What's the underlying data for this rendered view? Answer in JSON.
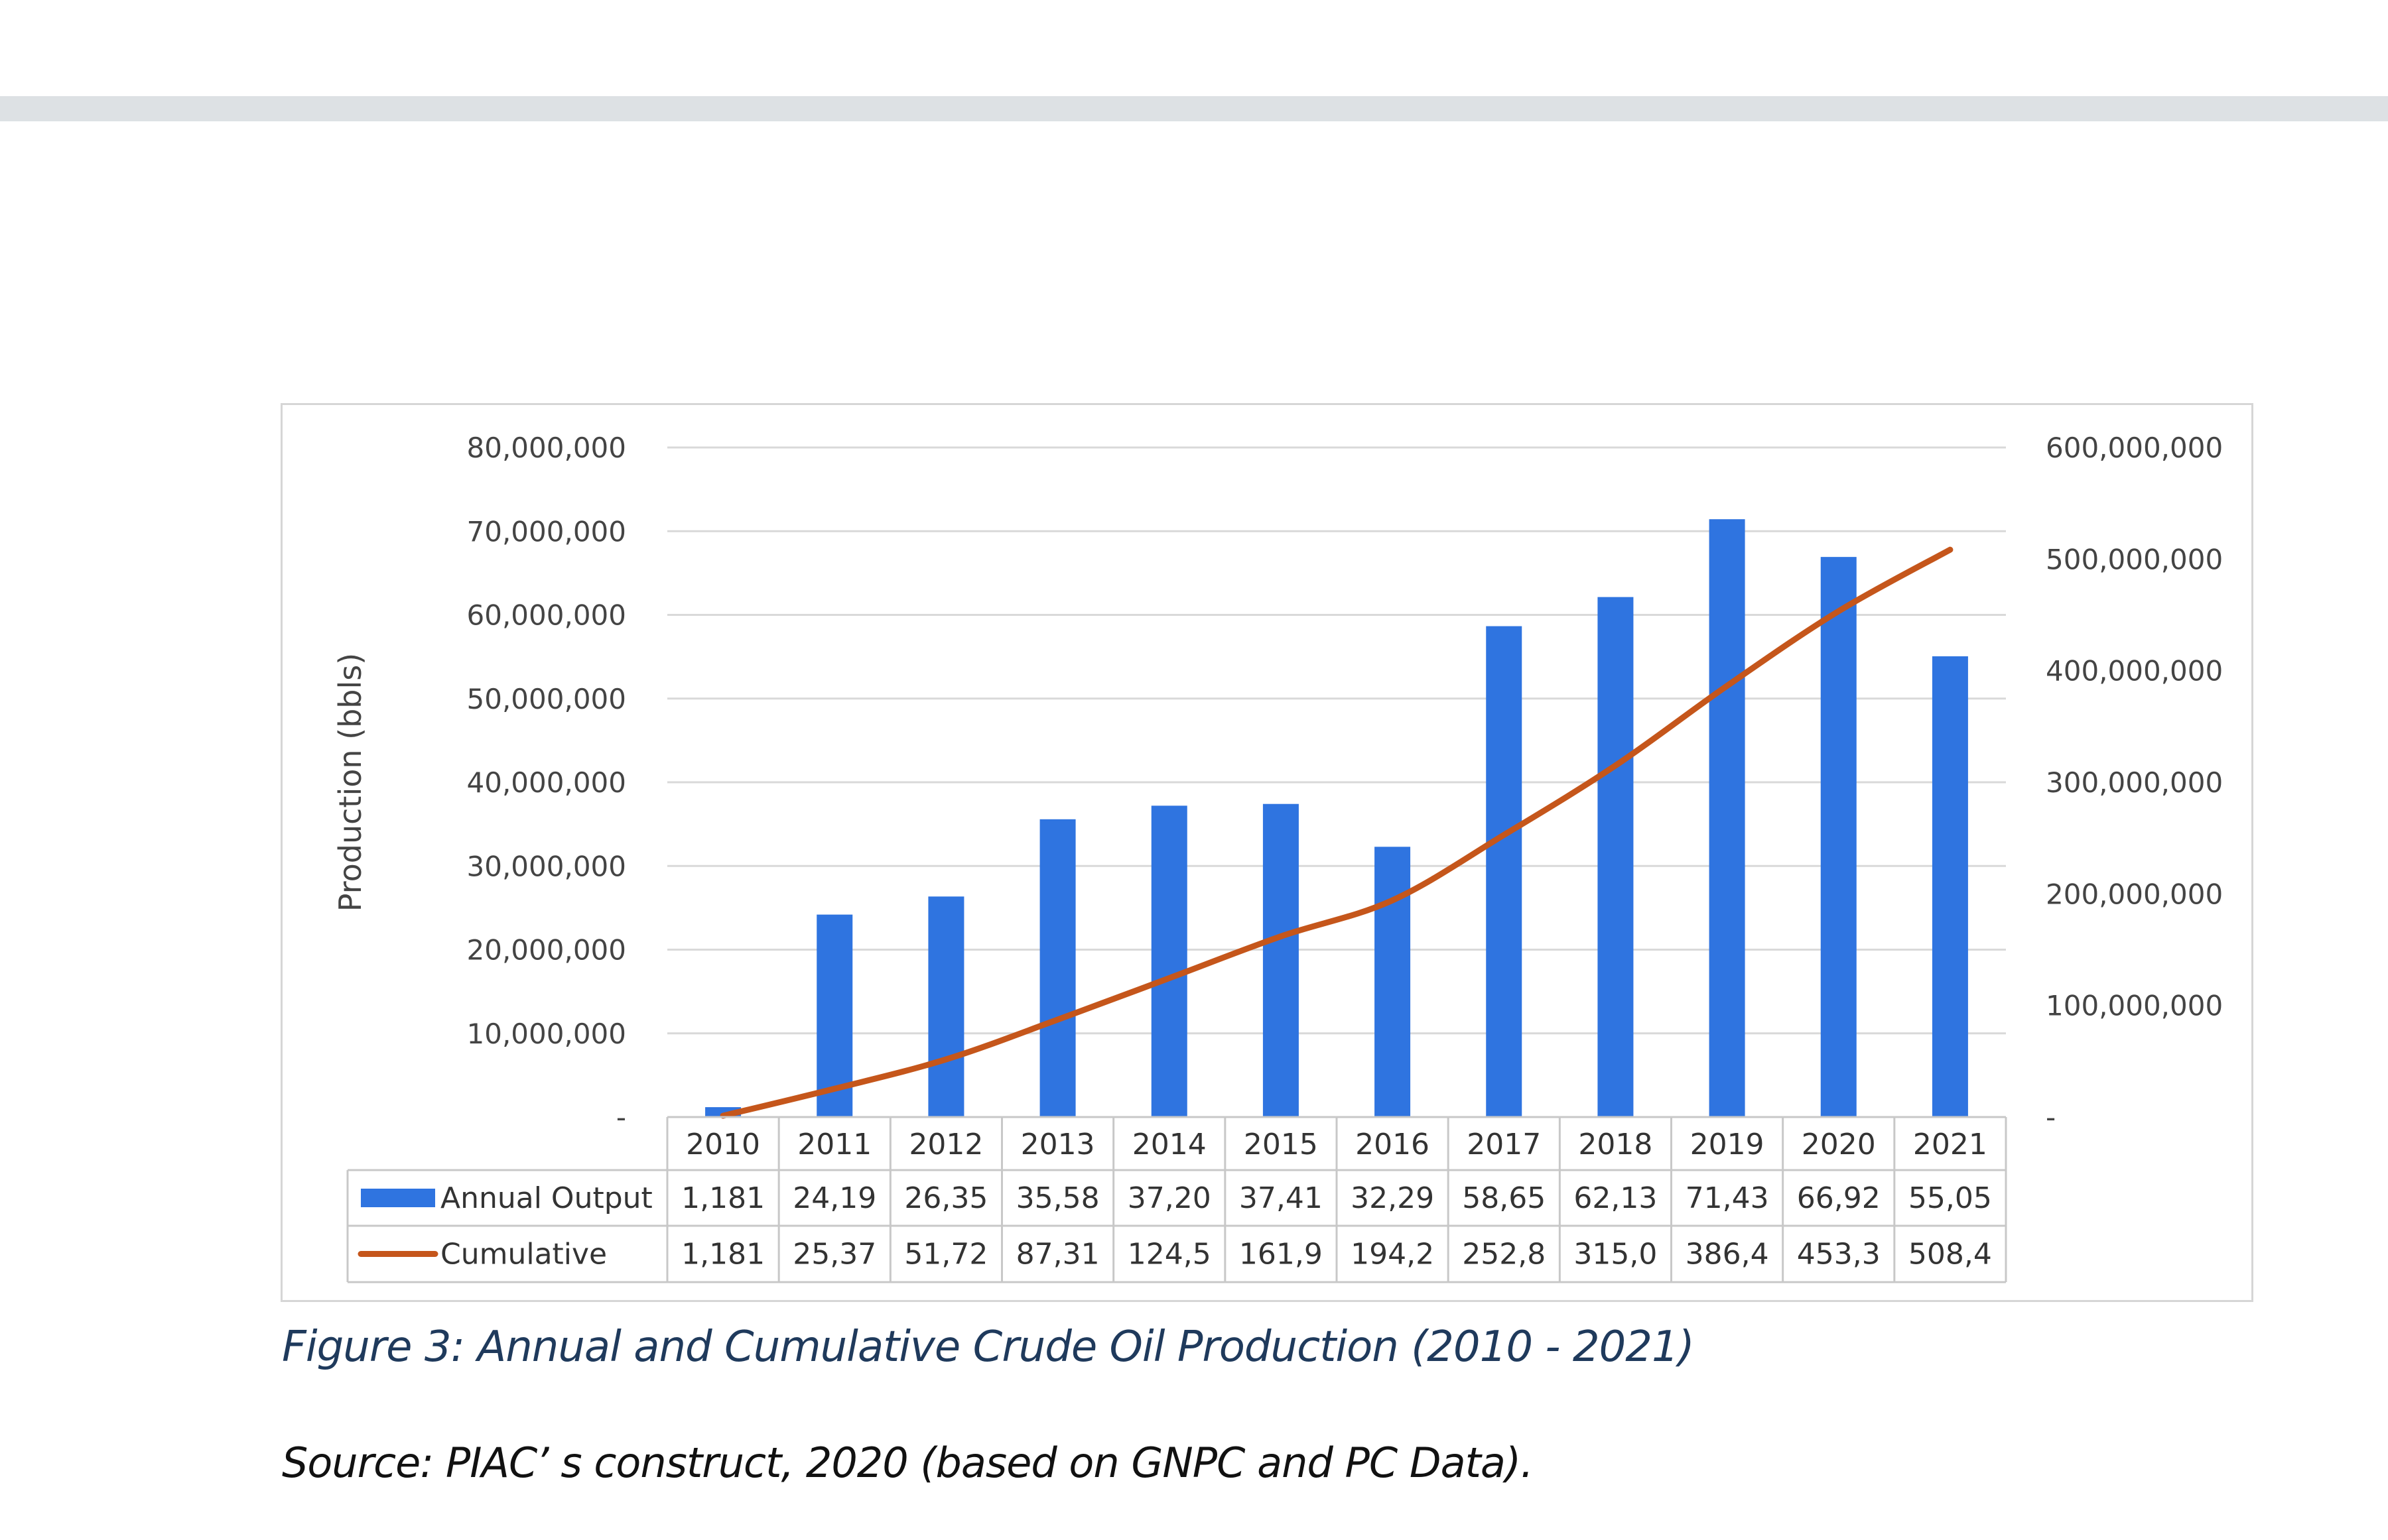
{
  "chart_data": {
    "type": "bar",
    "title": "",
    "xlabel": "",
    "ylabel": "Production (bbls)",
    "categories": [
      "2010",
      "2011",
      "2012",
      "2013",
      "2014",
      "2015",
      "2016",
      "2017",
      "2018",
      "2019",
      "2020",
      "2021"
    ],
    "ylim": [
      0,
      80000000
    ],
    "y2lim": [
      0,
      600000000
    ],
    "y_ticks": [
      0,
      10000000,
      20000000,
      30000000,
      40000000,
      50000000,
      60000000,
      70000000,
      80000000
    ],
    "y_tick_labels": [
      "-",
      "10,000,000",
      "20,000,000",
      "30,000,000",
      "40,000,000",
      "50,000,000",
      "60,000,000",
      "70,000,000",
      "80,000,000"
    ],
    "y2_ticks": [
      0,
      100000000,
      200000000,
      300000000,
      400000000,
      500000000,
      600000000
    ],
    "y2_tick_labels": [
      "-",
      "100,000,000",
      "200,000,000",
      "300,000,000",
      "400,000,000",
      "500,000,000",
      "600,000,000"
    ],
    "grid": true,
    "series": [
      {
        "name": "Annual Output",
        "kind": "bar",
        "axis": "left",
        "color": "#2f74e0",
        "values": [
          1181000,
          24190000,
          26350000,
          35580000,
          37200000,
          37410000,
          32290000,
          58650000,
          62130000,
          71430000,
          66920000,
          55050000
        ],
        "table_labels": [
          "1,181",
          "24,19",
          "26,35",
          "35,58",
          "37,20",
          "37,41",
          "32,29",
          "58,65",
          "62,13",
          "71,43",
          "66,92",
          "55,05"
        ]
      },
      {
        "name": "Cumulative",
        "kind": "line",
        "axis": "right",
        "color": "#c5561b",
        "values": [
          1181000,
          25370000,
          51720000,
          87310000,
          124500000,
          161900000,
          194200000,
          252800000,
          315000000,
          386400000,
          453300000,
          508400000
        ],
        "table_labels": [
          "1,181",
          "25,37",
          "51,72",
          "87,31",
          "124,5",
          "161,9",
          "194,2",
          "252,8",
          "315,0",
          "386,4",
          "453,3",
          "508,4"
        ]
      }
    ]
  },
  "caption": "Figure 3: Annual and Cumulative Crude Oil Production (2010 - 2021)",
  "source": "Source: PIAC’  s construct, 2020 (based on GNPC and PC Data)."
}
